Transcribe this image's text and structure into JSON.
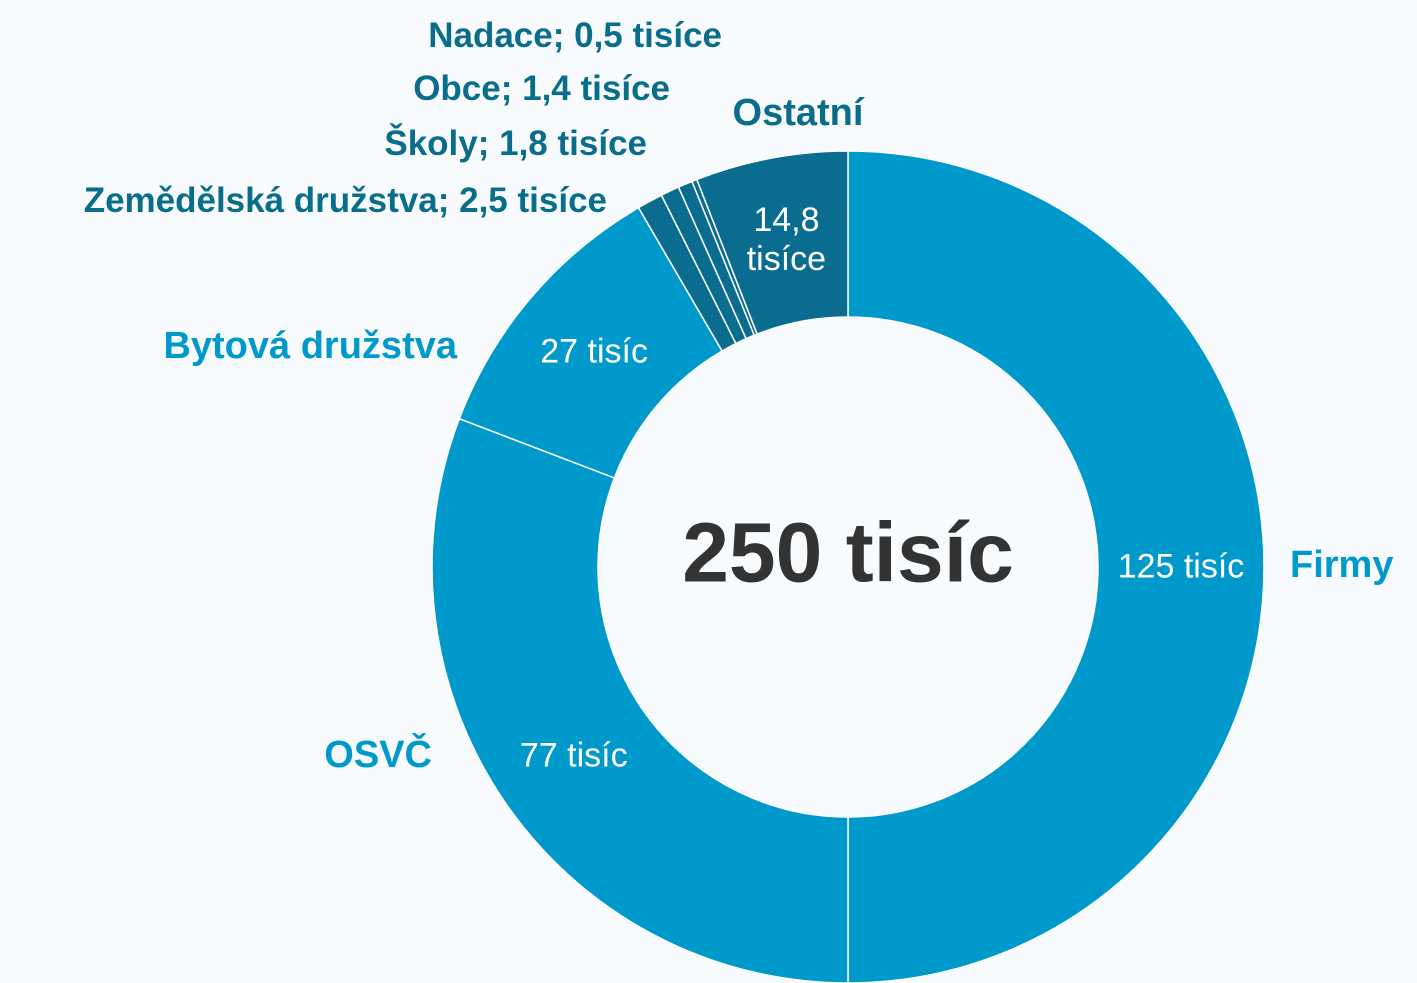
{
  "chart_data": {
    "type": "donut",
    "center_label": "250 tisíc",
    "categories": [
      "Firmy",
      "OSVČ",
      "Bytová družstva",
      "Zemědělská družstva; 2,5 tisíce",
      "Školy; 1,8 tisíce",
      "Obce; 1,4 tisíce",
      "Nadace; 0,5 tisíce",
      "Ostatní"
    ],
    "values": [
      125,
      77,
      27,
      2.5,
      1.8,
      1.4,
      0.5,
      14.8
    ],
    "value_labels": [
      "125 tisíc",
      "77 tisíc",
      "27 tisíc",
      null,
      null,
      null,
      null,
      "14,8 tisíce"
    ],
    "colors": [
      "#0099cc",
      "#0099cc",
      "#0099cc",
      "#0a6d8f",
      "#0a6d8f",
      "#0a6d8f",
      "#0a6d8f",
      "#0a6d8f"
    ],
    "label_colors": [
      "#0099cc",
      "#0099cc",
      "#0099cc",
      "#0a6d8a",
      "#0a6d8a",
      "#0a6d8a",
      "#0a6d8a",
      "#0a6d8a"
    ]
  }
}
